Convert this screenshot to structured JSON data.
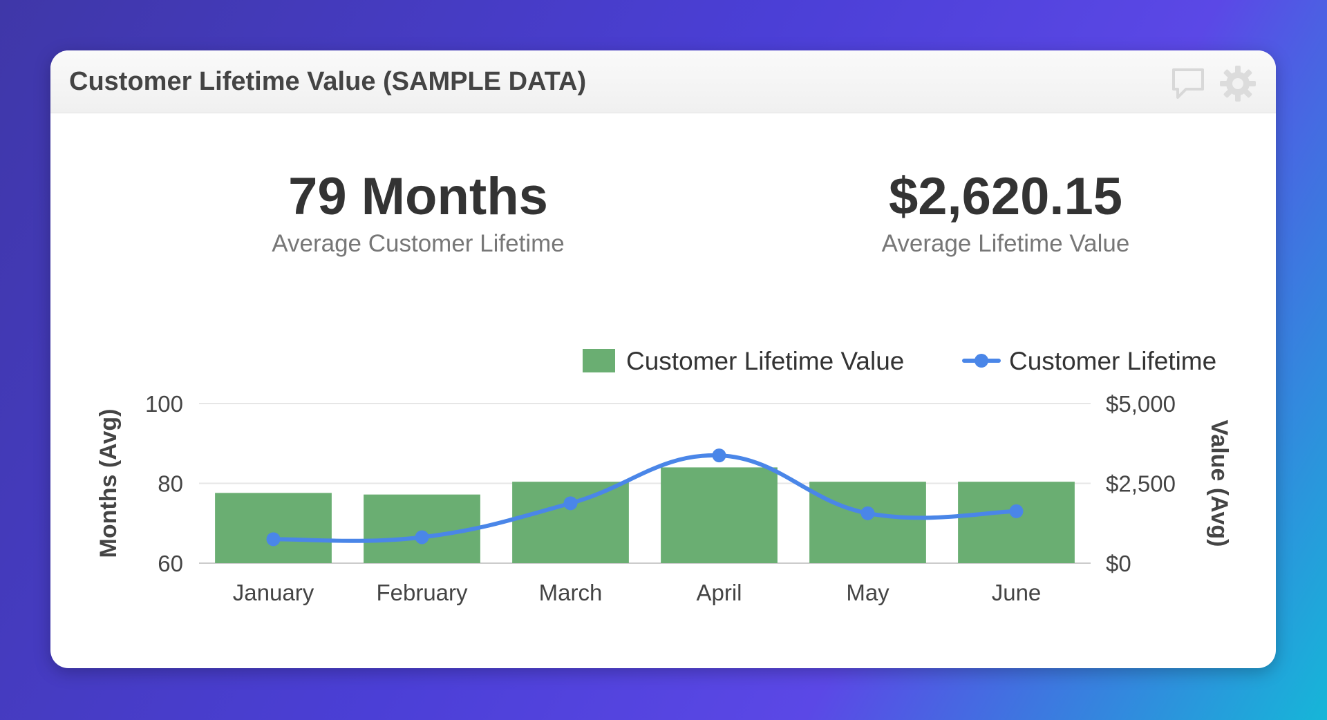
{
  "widget": {
    "title": "Customer Lifetime Value (SAMPLE DATA)",
    "icons": [
      "comment-icon",
      "gear-icon"
    ]
  },
  "kpis": [
    {
      "value": "79 Months",
      "label": "Average Customer Lifetime"
    },
    {
      "value": "$2,620.15",
      "label": "Average Lifetime Value"
    }
  ],
  "chart_data": {
    "type": "bar",
    "categories": [
      "January",
      "February",
      "March",
      "April",
      "May",
      "June"
    ],
    "series": [
      {
        "name": "Customer Lifetime Value",
        "type": "bar",
        "axis": "right",
        "color": "#6aae72",
        "values": [
          2200,
          2150,
          2550,
          3000,
          2550,
          2550
        ]
      },
      {
        "name": "Customer Lifetime",
        "type": "line",
        "axis": "left",
        "color": "#4a86e8",
        "values": [
          66,
          66.5,
          75,
          87,
          72.5,
          73
        ]
      }
    ],
    "left_axis": {
      "label": "Months (Avg)",
      "range": [
        60,
        100
      ],
      "ticks": [
        60,
        80,
        100
      ],
      "tick_labels": [
        "60",
        "80",
        "100"
      ]
    },
    "right_axis": {
      "label": "Value (Avg)",
      "range": [
        0,
        5000
      ],
      "ticks": [
        0,
        2500,
        5000
      ],
      "tick_labels": [
        "$0",
        "$2,500",
        "$5,000"
      ]
    },
    "legend": "top-right",
    "grid": true
  }
}
